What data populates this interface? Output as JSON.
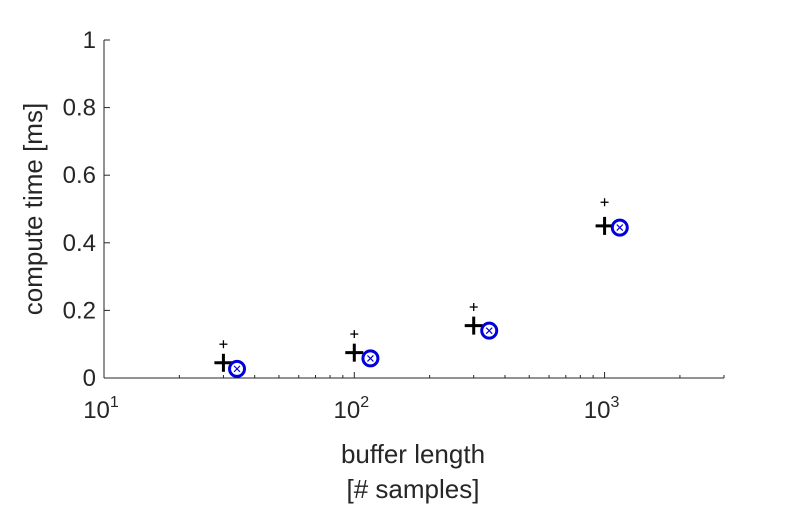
{
  "chart_data": {
    "type": "scatter",
    "title": "",
    "xlabel": [
      "buffer length",
      "[# samples]"
    ],
    "ylabel": "compute time [ms]",
    "xscale": "log",
    "xlim": [
      10,
      3000
    ],
    "ylim": [
      0,
      1
    ],
    "grid": false,
    "xticks": [
      {
        "value": 10,
        "base": "10",
        "exp": "1"
      },
      {
        "value": 100,
        "base": "10",
        "exp": "2"
      },
      {
        "value": 1000,
        "base": "10",
        "exp": "3"
      }
    ],
    "yticks": [
      {
        "value": 0,
        "label": "0"
      },
      {
        "value": 0.2,
        "label": "0.2"
      },
      {
        "value": 0.4,
        "label": "0.4"
      },
      {
        "value": 0.6,
        "label": "0.6"
      },
      {
        "value": 0.8,
        "label": "0.8"
      },
      {
        "value": 1.0,
        "label": "1"
      }
    ],
    "series": [
      {
        "marker": "big-plus",
        "color": "#000000",
        "x": [
          30,
          100,
          300,
          1000
        ],
        "y": [
          0.045,
          0.075,
          0.155,
          0.45
        ]
      },
      {
        "marker": "small-plus",
        "color": "#000000",
        "x": [
          30,
          100,
          300,
          1000
        ],
        "y": [
          0.1,
          0.13,
          0.21,
          0.52
        ]
      },
      {
        "marker": "circle",
        "color": "#0000dd",
        "x": [
          34,
          116,
          346,
          1150
        ],
        "y": [
          0.027,
          0.058,
          0.14,
          0.445
        ]
      },
      {
        "marker": "x-small",
        "color": "#0000dd",
        "x": [
          34,
          116,
          346,
          1150
        ],
        "y": [
          0.027,
          0.058,
          0.14,
          0.445
        ]
      }
    ]
  }
}
